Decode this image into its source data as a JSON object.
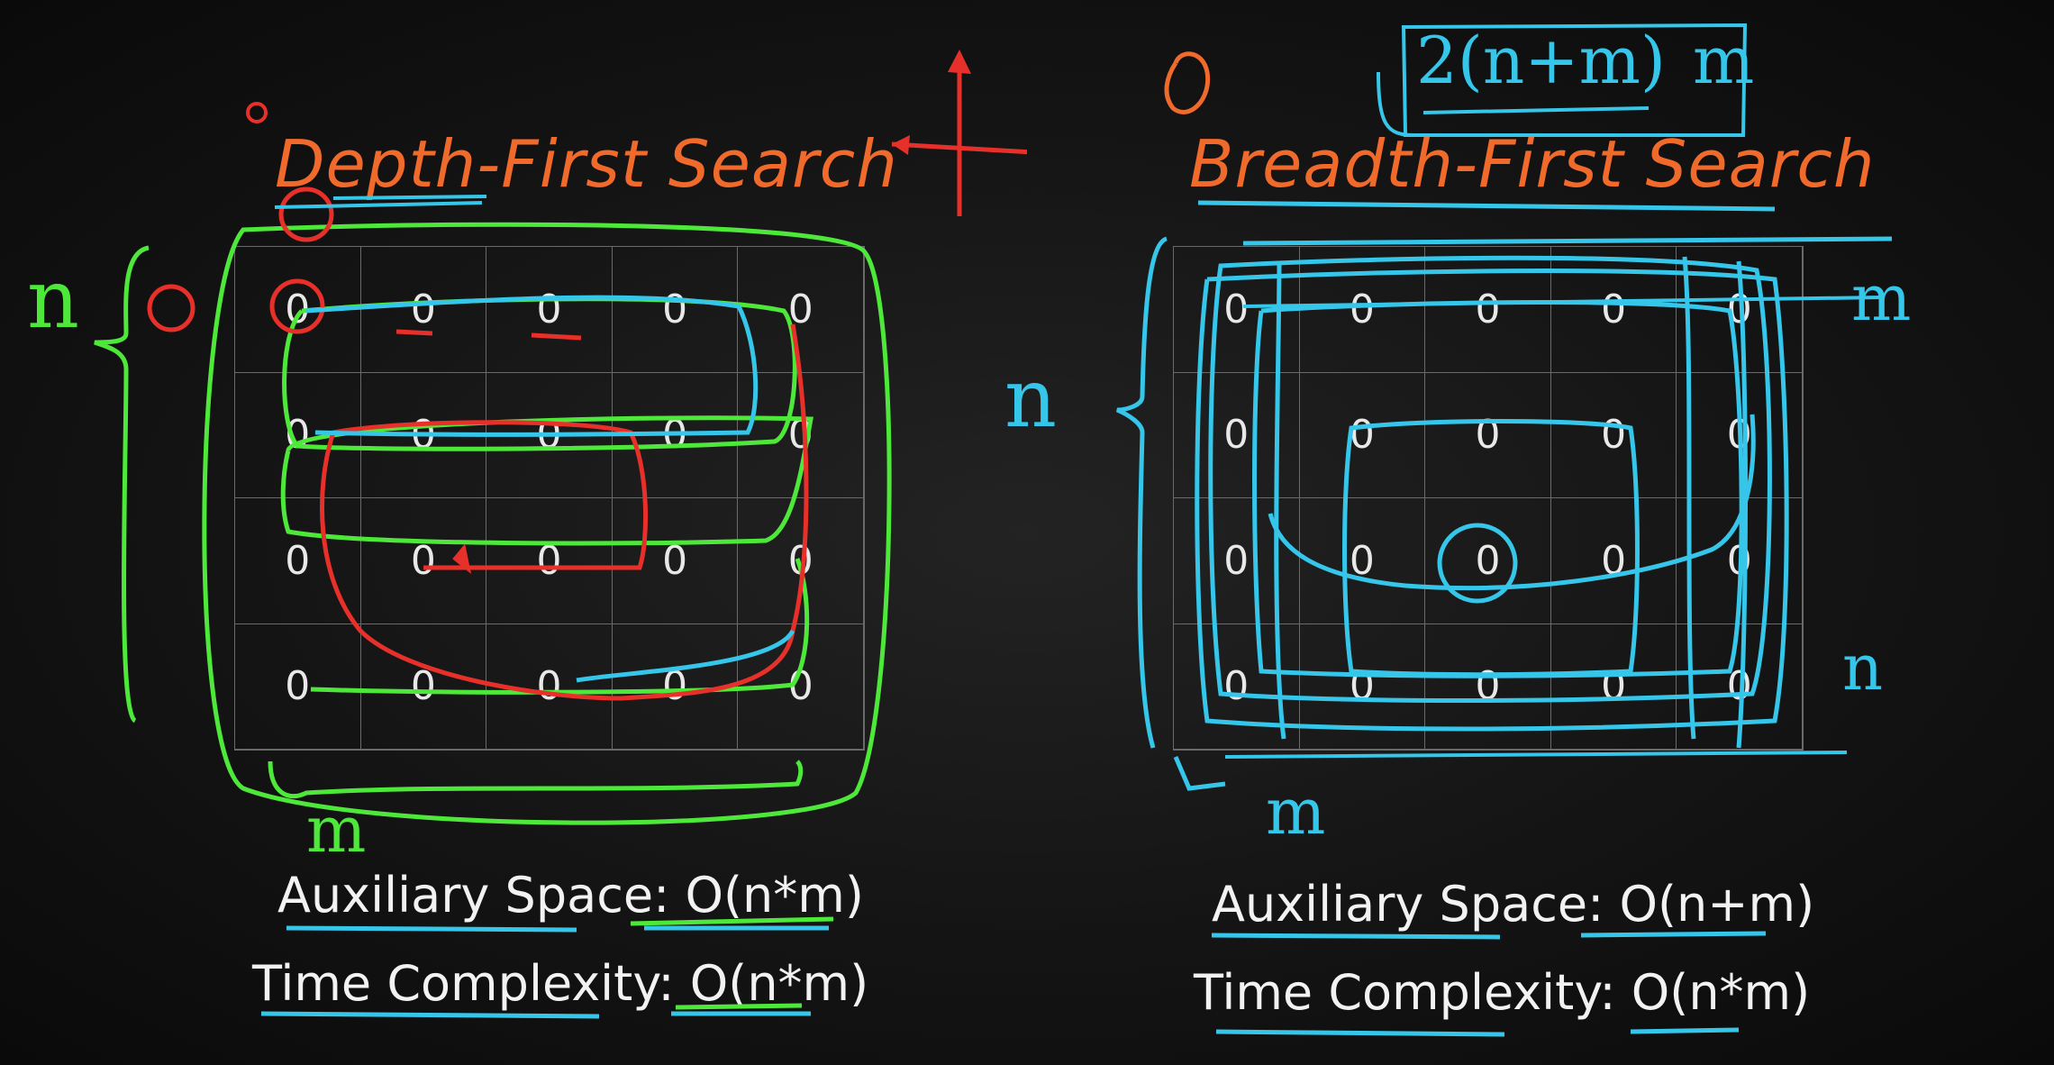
{
  "dfs": {
    "title": "Depth-First Search",
    "grid": [
      [
        "0",
        "0",
        "0",
        "0",
        "0"
      ],
      [
        "0",
        "0",
        "0",
        "0",
        "0"
      ],
      [
        "0",
        "0",
        "0",
        "0",
        "0"
      ],
      [
        "0",
        "0",
        "0",
        "0",
        "0"
      ]
    ],
    "aux_label": "Auxiliary Space:",
    "aux_value": "O(n*m)",
    "time_label": "Time Complexity:",
    "time_value": "O(n*m)",
    "rows_annotation": "n",
    "cols_annotation": "m"
  },
  "bfs": {
    "title": "Breadth-First Search",
    "grid": [
      [
        "0",
        "0",
        "0",
        "0",
        "0"
      ],
      [
        "0",
        "0",
        "0",
        "0",
        "0"
      ],
      [
        "0",
        "0",
        "0",
        "0",
        "0"
      ],
      [
        "0",
        "0",
        "0",
        "0",
        "0"
      ]
    ],
    "aux_label": "Auxiliary Space:",
    "aux_value": "O(n+m)",
    "time_label": "Time Complexity:",
    "time_value": "O(n*m)",
    "rows_annotation": "n",
    "cols_annotation": "m",
    "side_annotation_top": "m",
    "side_annotation_bottom": "n",
    "formula": "2(n+m)",
    "formula_suffix": "m"
  },
  "colors": {
    "title": "#f06a2c",
    "dfs_ink": "#4ee83a",
    "dfs_path": "#e8302a",
    "bfs_ink": "#35c6ea",
    "underline": "#35c6ea",
    "text": "#f2f2f2"
  }
}
